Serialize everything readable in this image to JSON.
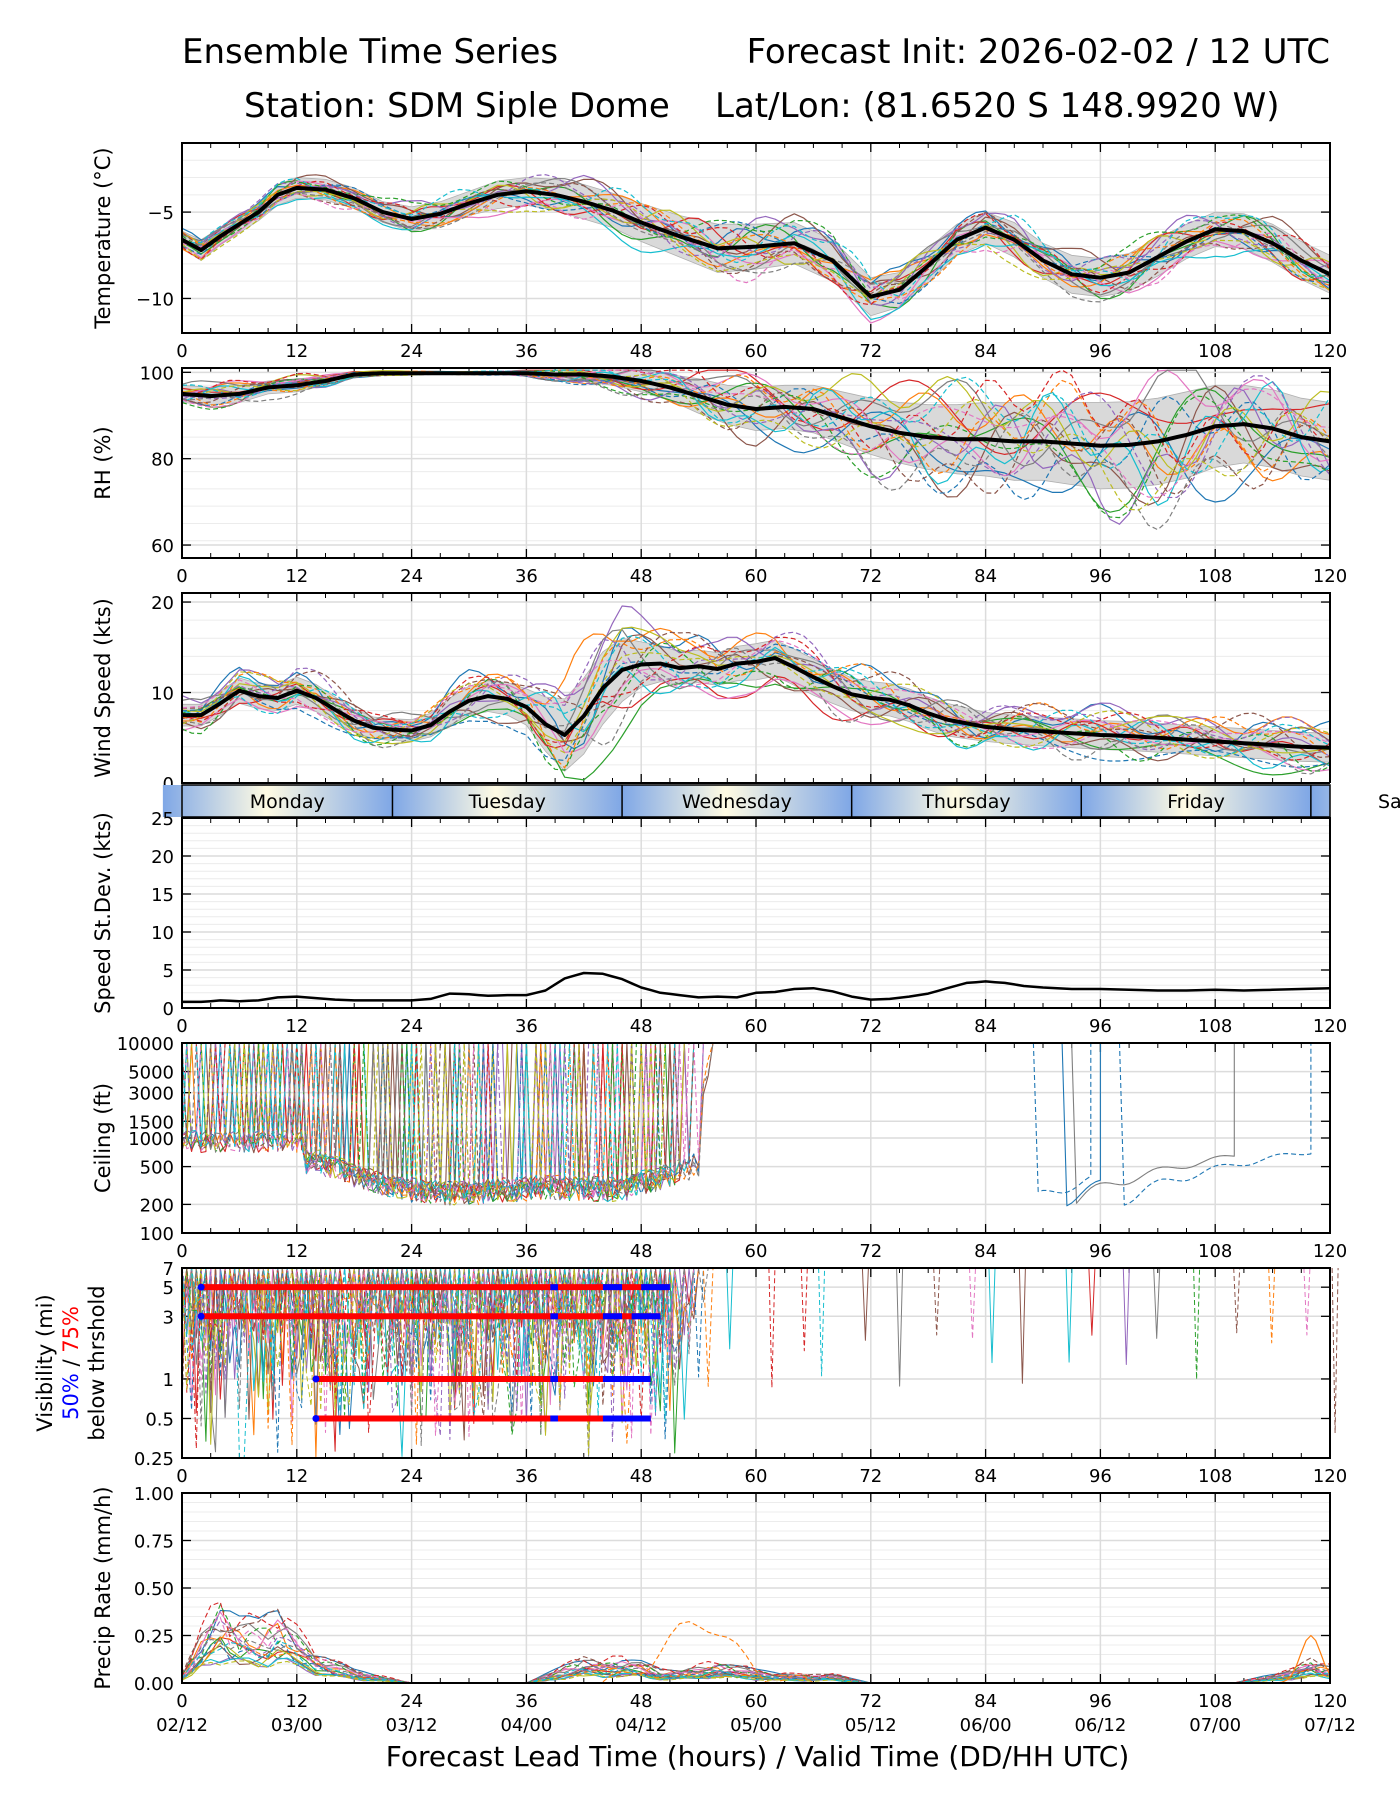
{
  "header": {
    "left_title": "Ensemble Time Series",
    "right_title": "Forecast Init: 2026-02-02 / 12 UTC",
    "station": "Station: SDM  Siple Dome",
    "latlon": "Lat/Lon: (81.6520 S 148.9920 W)"
  },
  "xaxis": {
    "label": "Forecast Lead Time (hours) / Valid Time (DD/HH UTC)",
    "ticks": [
      0,
      12,
      24,
      36,
      48,
      60,
      72,
      84,
      96,
      108,
      120
    ],
    "valid_times": [
      "02/12",
      "03/00",
      "03/12",
      "04/00",
      "04/12",
      "05/00",
      "05/12",
      "06/00",
      "06/12",
      "07/00",
      "07/12"
    ]
  },
  "days": {
    "labels": [
      "Monday",
      "Tuesday",
      "Wednesday",
      "Thursday",
      "Friday",
      "Sa"
    ],
    "boundaries_hours": [
      22,
      46,
      70,
      94,
      118
    ]
  },
  "colors": {
    "mean": "#000000",
    "spread": "#d9d9d9",
    "p50": "#0000ff",
    "p75": "#ff0000",
    "members": [
      "#1f77b4",
      "#ff7f0e",
      "#2ca02c",
      "#d62728",
      "#9467bd",
      "#8c564b",
      "#e377c2",
      "#7f7f7f",
      "#bcbd22",
      "#17becf"
    ]
  },
  "chart_data": [
    {
      "id": "temperature",
      "type": "line",
      "ylabel": "Temperature (°C)",
      "yticks": [
        -10,
        -5
      ],
      "ylim": [
        -12,
        -1
      ],
      "grid": true,
      "mean": {
        "x": [
          0,
          2,
          4,
          6,
          8,
          10,
          12,
          15,
          18,
          21,
          24,
          27,
          30,
          33,
          36,
          39,
          42,
          45,
          48,
          52,
          56,
          60,
          64,
          68,
          72,
          75,
          78,
          81,
          84,
          87,
          90,
          93,
          96,
          99,
          102,
          105,
          108,
          111,
          114,
          117,
          120
        ],
        "y": [
          -6.6,
          -7.2,
          -6.4,
          -5.7,
          -5.0,
          -4.0,
          -3.6,
          -3.7,
          -4.2,
          -5.0,
          -5.4,
          -5.1,
          -4.5,
          -4.0,
          -3.8,
          -4.0,
          -4.4,
          -4.9,
          -5.6,
          -6.4,
          -7.1,
          -7.0,
          -6.8,
          -7.8,
          -9.9,
          -9.5,
          -8.1,
          -6.6,
          -5.9,
          -6.6,
          -7.8,
          -8.6,
          -8.8,
          -8.5,
          -7.6,
          -6.7,
          -6.0,
          -6.1,
          -6.8,
          -7.8,
          -8.6
        ]
      },
      "spread_halfwidth": [
        0.5,
        0.6,
        0.5,
        0.5,
        0.5,
        0.6,
        0.6,
        0.6,
        0.6,
        0.6,
        0.7,
        0.7,
        0.7,
        0.8,
        0.8,
        0.9,
        1.0,
        1.0,
        1.1,
        1.2,
        1.4,
        1.3,
        1.2,
        1.2,
        1.1,
        1.0,
        1.0,
        0.9,
        0.9,
        1.0,
        1.0,
        1.1,
        1.1,
        1.1,
        1.1,
        1.0,
        1.0,
        1.0,
        1.1,
        1.1,
        1.1
      ]
    },
    {
      "id": "rh",
      "type": "line",
      "ylabel": "RH (%)",
      "yticks": [
        60,
        80,
        100
      ],
      "ylim": [
        57,
        101
      ],
      "grid": true,
      "mean": {
        "x": [
          0,
          3,
          6,
          9,
          12,
          15,
          18,
          21,
          24,
          27,
          30,
          33,
          36,
          39,
          42,
          45,
          48,
          51,
          54,
          57,
          60,
          63,
          66,
          69,
          72,
          75,
          78,
          81,
          84,
          87,
          90,
          93,
          96,
          99,
          102,
          105,
          108,
          111,
          114,
          117,
          120
        ],
        "y": [
          95,
          94.5,
          95,
          96.5,
          97,
          98,
          99.5,
          99.8,
          99.8,
          99.8,
          99.8,
          99.8,
          99.8,
          99.5,
          99.5,
          99,
          98,
          96.5,
          94.5,
          92.5,
          91.5,
          92,
          91.5,
          89.5,
          87.5,
          86,
          85,
          84.5,
          84.5,
          84,
          84,
          83.5,
          83,
          83.2,
          84,
          85.5,
          87.5,
          88,
          87,
          85,
          84
        ]
      },
      "spread_halfwidth": [
        2,
        2,
        2,
        1.5,
        1.5,
        1,
        0.5,
        0.3,
        0.3,
        0.3,
        0.3,
        0.3,
        0.5,
        1,
        1.5,
        2,
        2.5,
        3,
        4,
        4.5,
        5,
        5,
        5.5,
        6,
        6.5,
        7,
        7.5,
        8,
        8.5,
        9,
        9,
        9.5,
        10,
        10,
        10,
        10,
        9.5,
        9,
        9,
        9,
        9
      ]
    },
    {
      "id": "wind_speed",
      "type": "line",
      "ylabel": "Wind Speed (kts)",
      "yticks": [
        0,
        10,
        20
      ],
      "ylim": [
        0,
        21
      ],
      "grid": true,
      "mean": {
        "x": [
          0,
          2,
          4,
          6,
          8,
          10,
          12,
          14,
          16,
          18,
          20,
          22,
          24,
          26,
          28,
          30,
          32,
          34,
          36,
          38,
          40,
          42,
          44,
          46,
          48,
          50,
          52,
          54,
          56,
          58,
          60,
          62,
          64,
          66,
          68,
          70,
          72,
          74,
          76,
          78,
          80,
          82,
          84,
          87,
          90,
          93,
          96,
          99,
          102,
          105,
          108,
          111,
          114,
          117,
          120
        ],
        "y": [
          7.5,
          7.5,
          8.8,
          10.2,
          9.6,
          9.4,
          10.2,
          9.4,
          8.1,
          6.9,
          6.1,
          5.9,
          5.8,
          6.4,
          7.9,
          9.1,
          9.6,
          9.3,
          8.4,
          6.5,
          5.3,
          7.4,
          10.5,
          12.5,
          13.1,
          13.2,
          12.7,
          12.9,
          12.6,
          13.2,
          13.4,
          13.8,
          12.8,
          11.7,
          10.7,
          9.8,
          9.4,
          9.2,
          8.6,
          7.7,
          7.0,
          6.6,
          6.2,
          5.9,
          5.7,
          5.5,
          5.3,
          5.2,
          5.0,
          4.8,
          4.6,
          4.4,
          4.2,
          4.0,
          3.9
        ]
      },
      "spread_halfwidth": [
        1.2,
        1.2,
        1.3,
        1.4,
        1.4,
        1.4,
        1.5,
        1.5,
        1.4,
        1.3,
        1.2,
        1.2,
        1.2,
        1.3,
        1.5,
        1.6,
        1.7,
        1.8,
        2.0,
        3.0,
        4.0,
        4.2,
        4.0,
        3.5,
        2.5,
        2.0,
        1.8,
        1.8,
        1.8,
        1.9,
        2.0,
        2.0,
        2.0,
        2.0,
        1.9,
        1.8,
        1.8,
        1.8,
        1.8,
        1.8,
        1.8,
        1.7,
        1.6,
        1.6,
        1.6,
        1.6,
        1.6,
        1.6,
        1.6,
        1.6,
        1.6,
        1.6,
        1.6,
        1.6,
        1.6
      ]
    },
    {
      "id": "speed_stdev",
      "type": "line",
      "ylabel": "Speed St.Dev. (kts)",
      "yticks": [
        0,
        5,
        10,
        15,
        20,
        25
      ],
      "ylim": [
        0,
        25
      ],
      "grid": true,
      "mean": {
        "x": [
          0,
          2,
          4,
          6,
          8,
          10,
          12,
          14,
          16,
          18,
          20,
          22,
          24,
          26,
          28,
          30,
          32,
          34,
          36,
          38,
          40,
          42,
          44,
          46,
          48,
          50,
          52,
          54,
          56,
          58,
          60,
          62,
          64,
          66,
          68,
          70,
          72,
          74,
          76,
          78,
          80,
          82,
          84,
          86,
          88,
          90,
          93,
          96,
          99,
          102,
          105,
          108,
          111,
          114,
          117,
          120
        ],
        "y": [
          0.8,
          0.8,
          1.0,
          0.9,
          1.0,
          1.4,
          1.5,
          1.3,
          1.1,
          1.0,
          1.0,
          1.0,
          1.0,
          1.2,
          1.9,
          1.8,
          1.6,
          1.7,
          1.7,
          2.3,
          3.9,
          4.6,
          4.5,
          3.8,
          2.7,
          2.0,
          1.7,
          1.4,
          1.5,
          1.4,
          2.0,
          2.1,
          2.5,
          2.6,
          2.2,
          1.5,
          1.1,
          1.2,
          1.5,
          1.9,
          2.6,
          3.3,
          3.5,
          3.3,
          2.9,
          2.7,
          2.5,
          2.5,
          2.4,
          2.3,
          2.3,
          2.4,
          2.3,
          2.4,
          2.5,
          2.6
        ]
      }
    },
    {
      "id": "ceiling",
      "type": "line",
      "ylabel": "Ceiling (ft)",
      "scale": "log",
      "yticks": [
        100,
        200,
        500,
        1000,
        1500,
        3000,
        5000,
        10000
      ],
      "ylim": [
        100,
        10000
      ],
      "grid": true,
      "median_low_cloud": {
        "x": [
          14,
          18,
          22,
          26,
          30,
          34,
          38,
          42,
          46,
          50,
          54,
          56
        ],
        "y": [
          600,
          420,
          320,
          280,
          280,
          300,
          320,
          310,
          300,
          400,
          550,
          10000
        ]
      }
    },
    {
      "id": "visibility",
      "type": "line",
      "ylabel": "Visibility (mi)",
      "ylabel_p50": "50%",
      "ylabel_sep": " / ",
      "ylabel_p75": "75%",
      "ylabel_line3": "below thrshold",
      "scale": "log",
      "yticks": [
        0.25,
        0.5,
        1,
        3,
        5,
        7
      ],
      "ylim": [
        0.25,
        7
      ],
      "grid": true,
      "threshold_bars": [
        {
          "threshold": 5,
          "x_start": 2,
          "x_end": 51
        },
        {
          "threshold": 3,
          "x_start": 2,
          "x_end": 50
        },
        {
          "threshold": 1,
          "x_start": 14,
          "x_end": 49
        },
        {
          "threshold": 0.5,
          "x_start": 14,
          "x_end": 49
        }
      ]
    },
    {
      "id": "precip_rate",
      "type": "line",
      "ylabel": "Precip Rate (mm/h)",
      "yticks": [
        0.0,
        0.25,
        0.5,
        0.75,
        1.0
      ],
      "ytick_labels": [
        "0.00",
        "0.25",
        "0.50",
        "0.75",
        "1.00"
      ],
      "ylim": [
        0,
        1
      ],
      "grid": true,
      "mean": {
        "x": [
          0,
          2,
          4,
          6,
          8,
          10,
          12,
          14,
          16,
          18,
          20,
          22,
          24,
          30,
          36,
          38,
          40,
          42,
          44,
          46,
          48,
          50,
          52,
          54,
          56,
          58,
          60,
          64,
          68,
          72,
          80,
          90,
          100,
          110,
          116,
          118,
          120
        ],
        "y": [
          0.02,
          0.12,
          0.2,
          0.15,
          0.14,
          0.18,
          0.12,
          0.08,
          0.05,
          0.03,
          0.02,
          0.01,
          0.0,
          0.0,
          0.0,
          0.02,
          0.04,
          0.06,
          0.05,
          0.06,
          0.05,
          0.03,
          0.03,
          0.04,
          0.05,
          0.04,
          0.03,
          0.02,
          0.02,
          0.0,
          0.0,
          0.0,
          0.0,
          0.0,
          0.03,
          0.06,
          0.04
        ]
      }
    }
  ]
}
